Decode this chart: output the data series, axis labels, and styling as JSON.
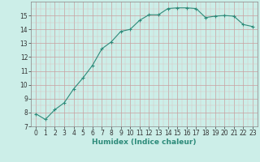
{
  "x": [
    0,
    1,
    2,
    3,
    4,
    5,
    6,
    7,
    8,
    9,
    10,
    11,
    12,
    13,
    14,
    15,
    16,
    17,
    18,
    19,
    20,
    21,
    22,
    23
  ],
  "y": [
    7.9,
    7.5,
    8.2,
    8.7,
    9.7,
    10.5,
    11.4,
    12.6,
    13.1,
    13.85,
    14.0,
    14.65,
    15.05,
    15.05,
    15.5,
    15.55,
    15.55,
    15.5,
    14.85,
    14.95,
    15.0,
    14.95,
    14.35,
    14.2
  ],
  "line_color": "#2d8b7a",
  "marker": "+",
  "marker_size": 3,
  "linewidth": 0.8,
  "xlabel": "Humidex (Indice chaleur)",
  "xlim": [
    -0.5,
    23.5
  ],
  "ylim": [
    7,
    16
  ],
  "yticks": [
    7,
    8,
    9,
    10,
    11,
    12,
    13,
    14,
    15
  ],
  "xticks": [
    0,
    1,
    2,
    3,
    4,
    5,
    6,
    7,
    8,
    9,
    10,
    11,
    12,
    13,
    14,
    15,
    16,
    17,
    18,
    19,
    20,
    21,
    22,
    23
  ],
  "bg_color": "#cceee8",
  "grid_color_major": "#c8a0a0",
  "grid_color_minor": "#ddc0c0",
  "tick_fontsize": 5.5,
  "xlabel_fontsize": 6.5
}
